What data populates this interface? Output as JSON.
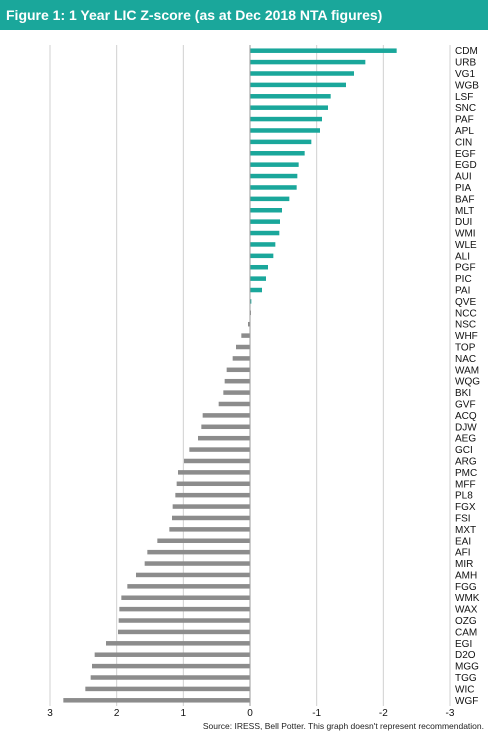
{
  "header": {
    "title": "Figure 1: 1 Year LIC Z-score (as at Dec 2018 NTA figures)"
  },
  "footer": {
    "source": "Source: IRESS, Bell Potter. This graph doesn't represent recommendation."
  },
  "colors": {
    "positive": "#1aa79b",
    "negative": "#8c8c8c",
    "title_bg": "#1aa79b",
    "grid": "#d0d0d0"
  },
  "chart_data": {
    "type": "bar",
    "orientation": "horizontal",
    "title": "Figure 1: 1 Year LIC Z-score (as at Dec 2018 NTA figures)",
    "xlabel": "",
    "ylabel": "",
    "x_axis_reversed": true,
    "xlim": [
      3,
      -3
    ],
    "x_ticks": [
      3,
      2,
      1,
      0,
      -1,
      -2,
      -3
    ],
    "grid": true,
    "categories": [
      "CDM",
      "URB",
      "VG1",
      "WGB",
      "LSF",
      "SNC",
      "PAF",
      "APL",
      "CIN",
      "EGF",
      "EGD",
      "AUI",
      "PIA",
      "BAF",
      "MLT",
      "DUI",
      "WMI",
      "WLE",
      "ALI",
      "PGF",
      "PIC",
      "PAI",
      "QVE",
      "NCC",
      "NSC",
      "WHF",
      "TOP",
      "NAC",
      "WAM",
      "WQG",
      "BKI",
      "GVF",
      "ACQ",
      "DJW",
      "AEG",
      "GCI",
      "ARG",
      "PMC",
      "MFF",
      "PL8",
      "FGX",
      "FSI",
      "MXT",
      "EAI",
      "AFI",
      "MIR",
      "AMH",
      "FGG",
      "WMK",
      "WAX",
      "OZG",
      "CAM",
      "EGI",
      "D2O",
      "MGG",
      "TGG",
      "WIC",
      "WGF"
    ],
    "values": [
      -2.2,
      -1.73,
      -1.56,
      -1.44,
      -1.21,
      -1.17,
      -1.08,
      -1.05,
      -0.92,
      -0.82,
      -0.73,
      -0.71,
      -0.7,
      -0.59,
      -0.48,
      -0.45,
      -0.44,
      -0.38,
      -0.35,
      -0.27,
      -0.24,
      -0.18,
      -0.02,
      0.0,
      0.03,
      0.13,
      0.21,
      0.26,
      0.35,
      0.38,
      0.4,
      0.47,
      0.71,
      0.73,
      0.78,
      0.91,
      0.99,
      1.08,
      1.1,
      1.12,
      1.16,
      1.17,
      1.21,
      1.39,
      1.54,
      1.58,
      1.71,
      1.84,
      1.93,
      1.96,
      1.97,
      1.98,
      2.16,
      2.33,
      2.37,
      2.39,
      2.47,
      2.8
    ]
  }
}
